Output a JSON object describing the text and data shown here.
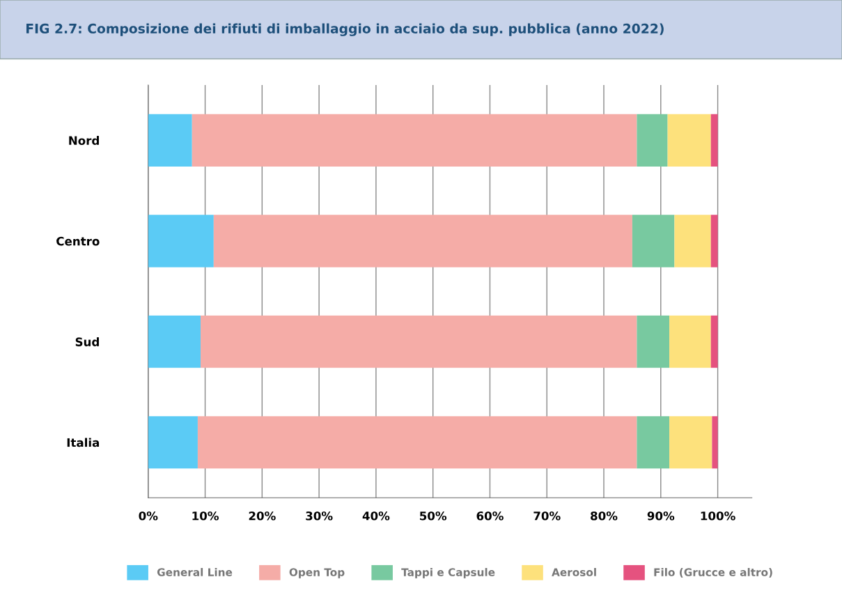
{
  "chart_data": {
    "type": "bar",
    "orientation": "horizontal",
    "stacked": true,
    "title": "FIG 2.7: Composizione dei rifiuti di imballaggio in acciaio da sup. pubblica (anno 2022)",
    "categories": [
      "Nord",
      "Centro",
      "Sud",
      "Italia"
    ],
    "series": [
      {
        "name": "General Line",
        "color": "#5bcbf5",
        "values": [
          7.7,
          11.5,
          9.2,
          8.7
        ]
      },
      {
        "name": "Open Top",
        "color": "#f5aca7",
        "values": [
          78.1,
          73.5,
          76.6,
          77.1
        ]
      },
      {
        "name": "Tappi e Capsule",
        "color": "#78c9a0",
        "values": [
          5.4,
          7.4,
          5.7,
          5.7
        ]
      },
      {
        "name": "Aerosol",
        "color": "#fde17c",
        "values": [
          7.6,
          6.4,
          7.3,
          7.5
        ]
      },
      {
        "name": "Filo (Grucce e altro)",
        "color": "#e5527f",
        "values": [
          1.2,
          1.2,
          1.2,
          1.0
        ]
      }
    ],
    "xlim": [
      0,
      106
    ],
    "xticks": [
      {
        "value": 0,
        "label": "0%"
      },
      {
        "value": 10,
        "label": "10%"
      },
      {
        "value": 20,
        "label": "20%"
      },
      {
        "value": 30,
        "label": "30%"
      },
      {
        "value": 40,
        "label": "40%"
      },
      {
        "value": 50,
        "label": "50%"
      },
      {
        "value": 60,
        "label": "60%"
      },
      {
        "value": 70,
        "label": "70%"
      },
      {
        "value": 80,
        "label": "80%"
      },
      {
        "value": 90,
        "label": "90%"
      },
      {
        "value": 100,
        "label": "100%"
      }
    ],
    "grid": "x",
    "legend": "bottom"
  }
}
